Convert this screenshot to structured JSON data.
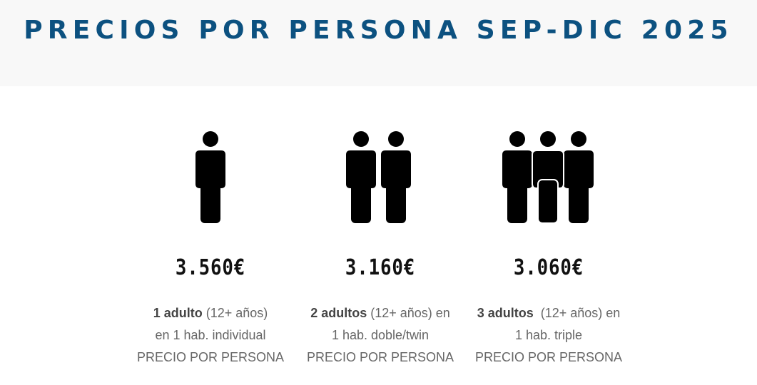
{
  "header": {
    "title": "PRECIOS POR PERSONA SEP-DIC 2025"
  },
  "options": [
    {
      "icon": "one-person-icon",
      "price": "3.560€",
      "count_label": "1 adulto",
      "age_note": " (12+ años)",
      "room_note": "en 1 hab. individual",
      "per_person": "PRECIO POR PERSONA"
    },
    {
      "icon": "two-persons-icon",
      "price": "3.160€",
      "count_label": "2 adultos",
      "age_note": " (12+ años) en",
      "room_note": "1 hab. doble/twin",
      "per_person": "PRECIO POR PERSONA"
    },
    {
      "icon": "three-persons-icon",
      "price": "3.060€",
      "count_label": "3 adultos",
      "age_note": "  (12+ años) en",
      "room_note": "1 hab. triple",
      "per_person": "PRECIO POR PERSONA"
    }
  ],
  "colors": {
    "title": "#0c5180",
    "header_bg": "#f8f8f8",
    "icon": "#000000",
    "price": "#111111",
    "text": "#666666"
  }
}
